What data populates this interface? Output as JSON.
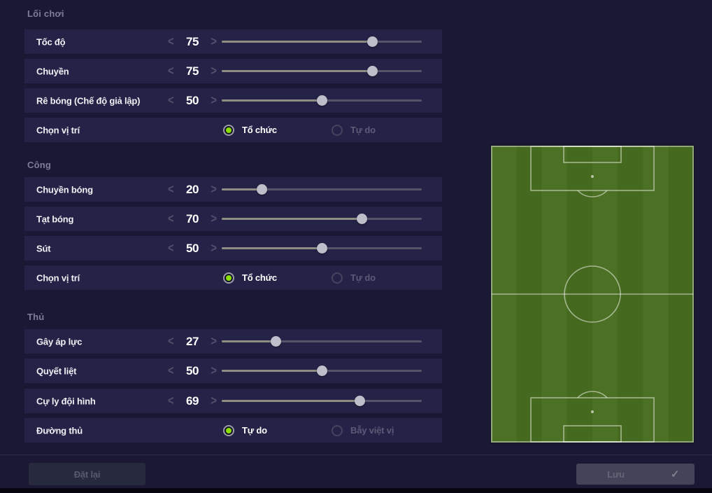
{
  "sections": [
    {
      "title": "Lối chơi",
      "rows": [
        {
          "type": "slider",
          "label": "Tốc độ",
          "value": 75
        },
        {
          "type": "slider",
          "label": "Chuyền",
          "value": 75
        },
        {
          "type": "slider",
          "label": "Rê bóng (Chế độ giả lập)",
          "value": 50
        },
        {
          "type": "radio",
          "label": "Chọn vị trí",
          "options": [
            {
              "label": "Tổ chức",
              "selected": true
            },
            {
              "label": "Tự do",
              "selected": false
            }
          ]
        }
      ]
    },
    {
      "title": "Công",
      "rows": [
        {
          "type": "slider",
          "label": "Chuyền bóng",
          "value": 20
        },
        {
          "type": "slider",
          "label": "Tạt bóng",
          "value": 70
        },
        {
          "type": "slider",
          "label": "Sút",
          "value": 50
        },
        {
          "type": "radio",
          "label": "Chọn vị trí",
          "options": [
            {
              "label": "Tổ chức",
              "selected": true
            },
            {
              "label": "Tự do",
              "selected": false
            }
          ]
        }
      ]
    },
    {
      "title": "Thủ",
      "rows": [
        {
          "type": "slider",
          "label": "Gây áp lực",
          "value": 27
        },
        {
          "type": "slider",
          "label": "Quyết liệt",
          "value": 50
        },
        {
          "type": "slider",
          "label": "Cự ly đội hình",
          "value": 69
        },
        {
          "type": "radio",
          "label": "Đường thủ",
          "options": [
            {
              "label": "Tự do",
              "selected": true
            },
            {
              "label": "Bẫy việt vị",
              "selected": false
            }
          ]
        }
      ]
    }
  ],
  "icons": {
    "chevron_left": "<",
    "chevron_right": ">",
    "check": "✓"
  },
  "footer": {
    "reset_label": "Đặt lại",
    "save_label": "Lưu"
  },
  "colors": {
    "background": "#1a1834",
    "row_background": "#242247",
    "accent_green": "#8ce000",
    "pitch_green_light": "#4c7125",
    "pitch_green_dark": "#456a1f",
    "slider_fill": "#8e8c83",
    "slider_track": "#55546a"
  }
}
